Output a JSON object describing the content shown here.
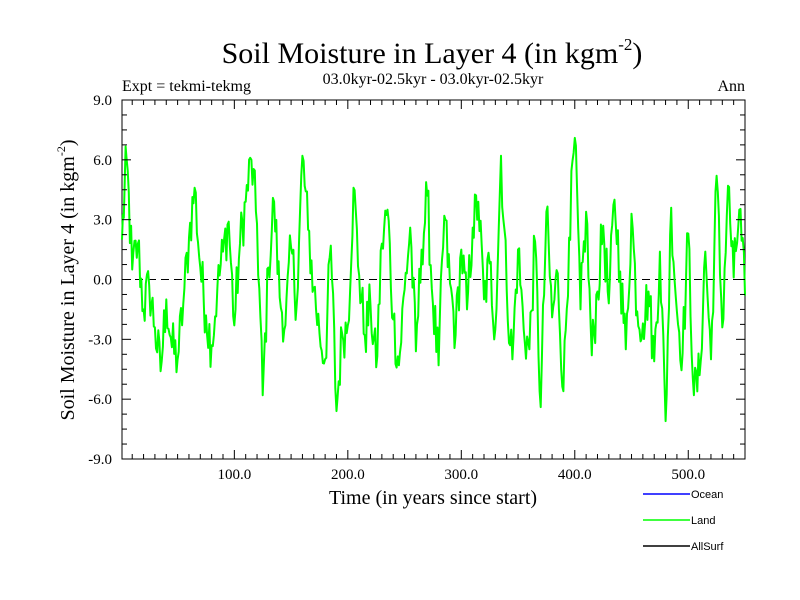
{
  "chart_data": {
    "type": "line",
    "title": "Soil Moisture in Layer 4 (in kgm",
    "title_sup": "-2",
    "title_close": ")",
    "subtitle_left": "Expt = tekmi-tekmg",
    "subtitle_center": "03.0kyr-02.5kyr - 03.0kyr-02.5kyr",
    "subtitle_right": "Ann",
    "xlabel": "Time (in years since start)",
    "ylabel": "Soil Moisture in Layer 4 (in kgm",
    "ylabel_sup": "-2",
    "ylabel_close": ")",
    "xlim": [
      1,
      550
    ],
    "ylim": [
      -9,
      9
    ],
    "xticks": [
      100,
      200,
      300,
      400,
      500
    ],
    "xtick_labels": [
      "100.0",
      "200.0",
      "300.0",
      "400.0",
      "500.0"
    ],
    "yticks": [
      -9,
      -6,
      -3,
      0,
      3,
      6,
      9
    ],
    "ytick_labels": [
      "-9.0",
      "-6.0",
      "-3.0",
      "0.0",
      "3.0",
      "6.0",
      "9.0"
    ],
    "zero_line": "dashed",
    "legend": [
      {
        "name": "Ocean",
        "color": "#0000ff"
      },
      {
        "name": "Land",
        "color": "#00ff00"
      },
      {
        "name": "AllSurf",
        "color": "#000000"
      }
    ],
    "series": [
      {
        "name": "Land",
        "color": "#00ff00",
        "x": [
          1,
          5,
          10,
          15,
          20,
          25,
          30,
          35,
          40,
          45,
          50,
          55,
          60,
          65,
          70,
          75,
          80,
          85,
          90,
          95,
          100,
          105,
          110,
          115,
          120,
          125,
          130,
          135,
          140,
          145,
          150,
          155,
          160,
          165,
          170,
          175,
          180,
          185,
          190,
          195,
          200,
          205,
          210,
          215,
          220,
          225,
          230,
          235,
          240,
          245,
          250,
          255,
          260,
          265,
          270,
          275,
          280,
          285,
          290,
          295,
          300,
          305,
          310,
          315,
          320,
          325,
          330,
          335,
          340,
          345,
          350,
          355,
          360,
          365,
          370,
          375,
          380,
          385,
          390,
          395,
          400,
          405,
          410,
          415,
          420,
          425,
          430,
          435,
          440,
          445,
          450,
          455,
          460,
          465,
          470,
          475,
          480,
          485,
          490,
          495,
          500,
          505,
          510,
          515,
          520,
          525,
          530,
          535,
          540,
          545,
          550
        ],
        "y": [
          2.0,
          6.1,
          0.5,
          1.8,
          -1.5,
          -0.3,
          -2.4,
          -4.6,
          -1.0,
          -3.4,
          -4.0,
          -1.2,
          2.1,
          4.6,
          0.6,
          -1.8,
          -3.3,
          -0.5,
          1.4,
          2.9,
          -2.3,
          1.8,
          3.9,
          6.0,
          2.8,
          -5.8,
          0.6,
          3.9,
          -0.9,
          -2.3,
          1.6,
          -1.2,
          6.2,
          2.5,
          -0.4,
          -2.7,
          -4.0,
          1.7,
          -6.6,
          -2.7,
          -2.3,
          4.6,
          0.2,
          -2.8,
          -1.3,
          -4.4,
          1.8,
          3.5,
          -2.0,
          -4.3,
          -0.5,
          2.6,
          -3.6,
          1.5,
          4.2,
          -1.2,
          -4.3,
          3.2,
          -0.2,
          -2.8,
          1.5,
          -1.5,
          2.6,
          3.9,
          -1.0,
          0.8,
          -2.5,
          6.2,
          -0.5,
          -4.0,
          1.5,
          -2.5,
          -3.5,
          1.9,
          -6.4,
          3.4,
          -1.9,
          0.3,
          -5.6,
          2.1,
          7.1,
          -1.5,
          3.4,
          -3.8,
          -0.6,
          2.7,
          -1.2,
          4.0,
          0.4,
          -3.5,
          3.3,
          -1.6,
          -2.2,
          -0.6,
          -4.1,
          1.4,
          -7.1,
          3.6,
          -1.6,
          -3.7,
          2.3,
          -5.8,
          -4.8,
          1.4,
          -4.0,
          5.2,
          -2.4,
          4.7,
          0.1,
          3.5,
          -0.8
        ]
      }
    ]
  }
}
